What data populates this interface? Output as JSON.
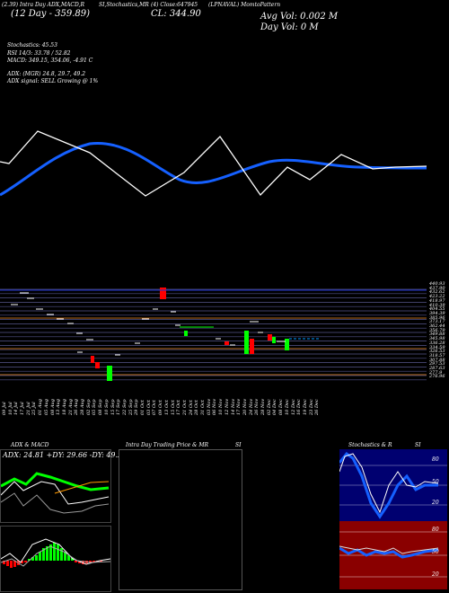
{
  "header": {
    "line1": "(2.39) Intra Day ADX,MACD,R",
    "stochastics_tag": "SI,Stochastics,MR",
    "tag3": "(4) Close:647945",
    "symbol": "(LPNAVAL) MomtoPattern",
    "ema_text": "(12 Day - 359.89)",
    "close_text": "CL: 344.90",
    "avg_vol": "Avg Vol: 0.002  M",
    "day_vol": "Day Vol: 0   M"
  },
  "indicators": {
    "stochastics": "Stochastics: 45.53",
    "rsi": "RSI 14/3: 33.78  / 52.82",
    "macd": "MACD: 349.15,  354.06,  -4.91 C",
    "adx": "ADX:                    (MGR) 24.8,  29.7,  49.2",
    "adx_signal": "ADX  signal: SELL Growing @ 1%"
  },
  "price_axis": [
    "440.93",
    "437.90",
    "432.62",
    "423.22",
    "418.97",
    "410.39",
    "404.55",
    "394.39",
    "385.96",
    "373.17",
    "362.44",
    "356.79",
    "349.88",
    "345.98",
    "336.28",
    "334.59",
    "326.53",
    "318.57",
    "307.88",
    "297.53",
    "287.63",
    "277.9",
    "276.96"
  ],
  "date_axis": [
    "09 Jul",
    "10 Jul",
    "14 Jul",
    "17 Jul",
    "21 Jul",
    "25 Jul",
    "01 Aug",
    "05 Aug",
    "08 Aug",
    "13 Aug",
    "18 Aug",
    "21 Aug",
    "26 Aug",
    "28 Aug",
    "02 Sep",
    "05 Sep",
    "08 Sep",
    "10 Sep",
    "15 Sep",
    "17 Sep",
    "22 Sep",
    "25 Sep",
    "29 Sep",
    "01 Oct",
    "03 Oct",
    "07 Oct",
    "09 Oct",
    "13 Oct",
    "15 Oct",
    "17 Oct",
    "21 Oct",
    "24 Oct",
    "28 Oct",
    "31 Oct",
    "03 Nov",
    "06 Nov",
    "10 Nov",
    "12 Nov",
    "14 Nov",
    "17 Nov",
    "20 Nov",
    "24 Nov",
    "26 Nov",
    "28 Nov",
    "02 Dec",
    "04 Dec",
    "08 Dec",
    "10 Dec",
    "12 Dec",
    "16 Dec",
    "19 Dec",
    "23 Dec",
    "26 Dec"
  ],
  "panels": {
    "adx_title": "ADX  & MACD",
    "adx_values": "ADX: 24.81  +DY: 29.66  -DY: 49.22",
    "intraday_title": "Intra  Day Trading Price  & MR",
    "si_label_1": "SI",
    "stoch_title": "Stochastics & R",
    "si_label_2": "SI",
    "stoch_scale": [
      "80",
      "50",
      "20"
    ],
    "rsi_scale": [
      "80",
      "50",
      "20"
    ]
  },
  "colors": {
    "bg": "#000000",
    "blue_line": "#1560ff",
    "white_line": "#ffffff",
    "green": "#00ff00",
    "red": "#ff0000",
    "grid_purple": "#55558a",
    "navy_panel": "#000070",
    "maroon_panel": "#8a0000"
  }
}
